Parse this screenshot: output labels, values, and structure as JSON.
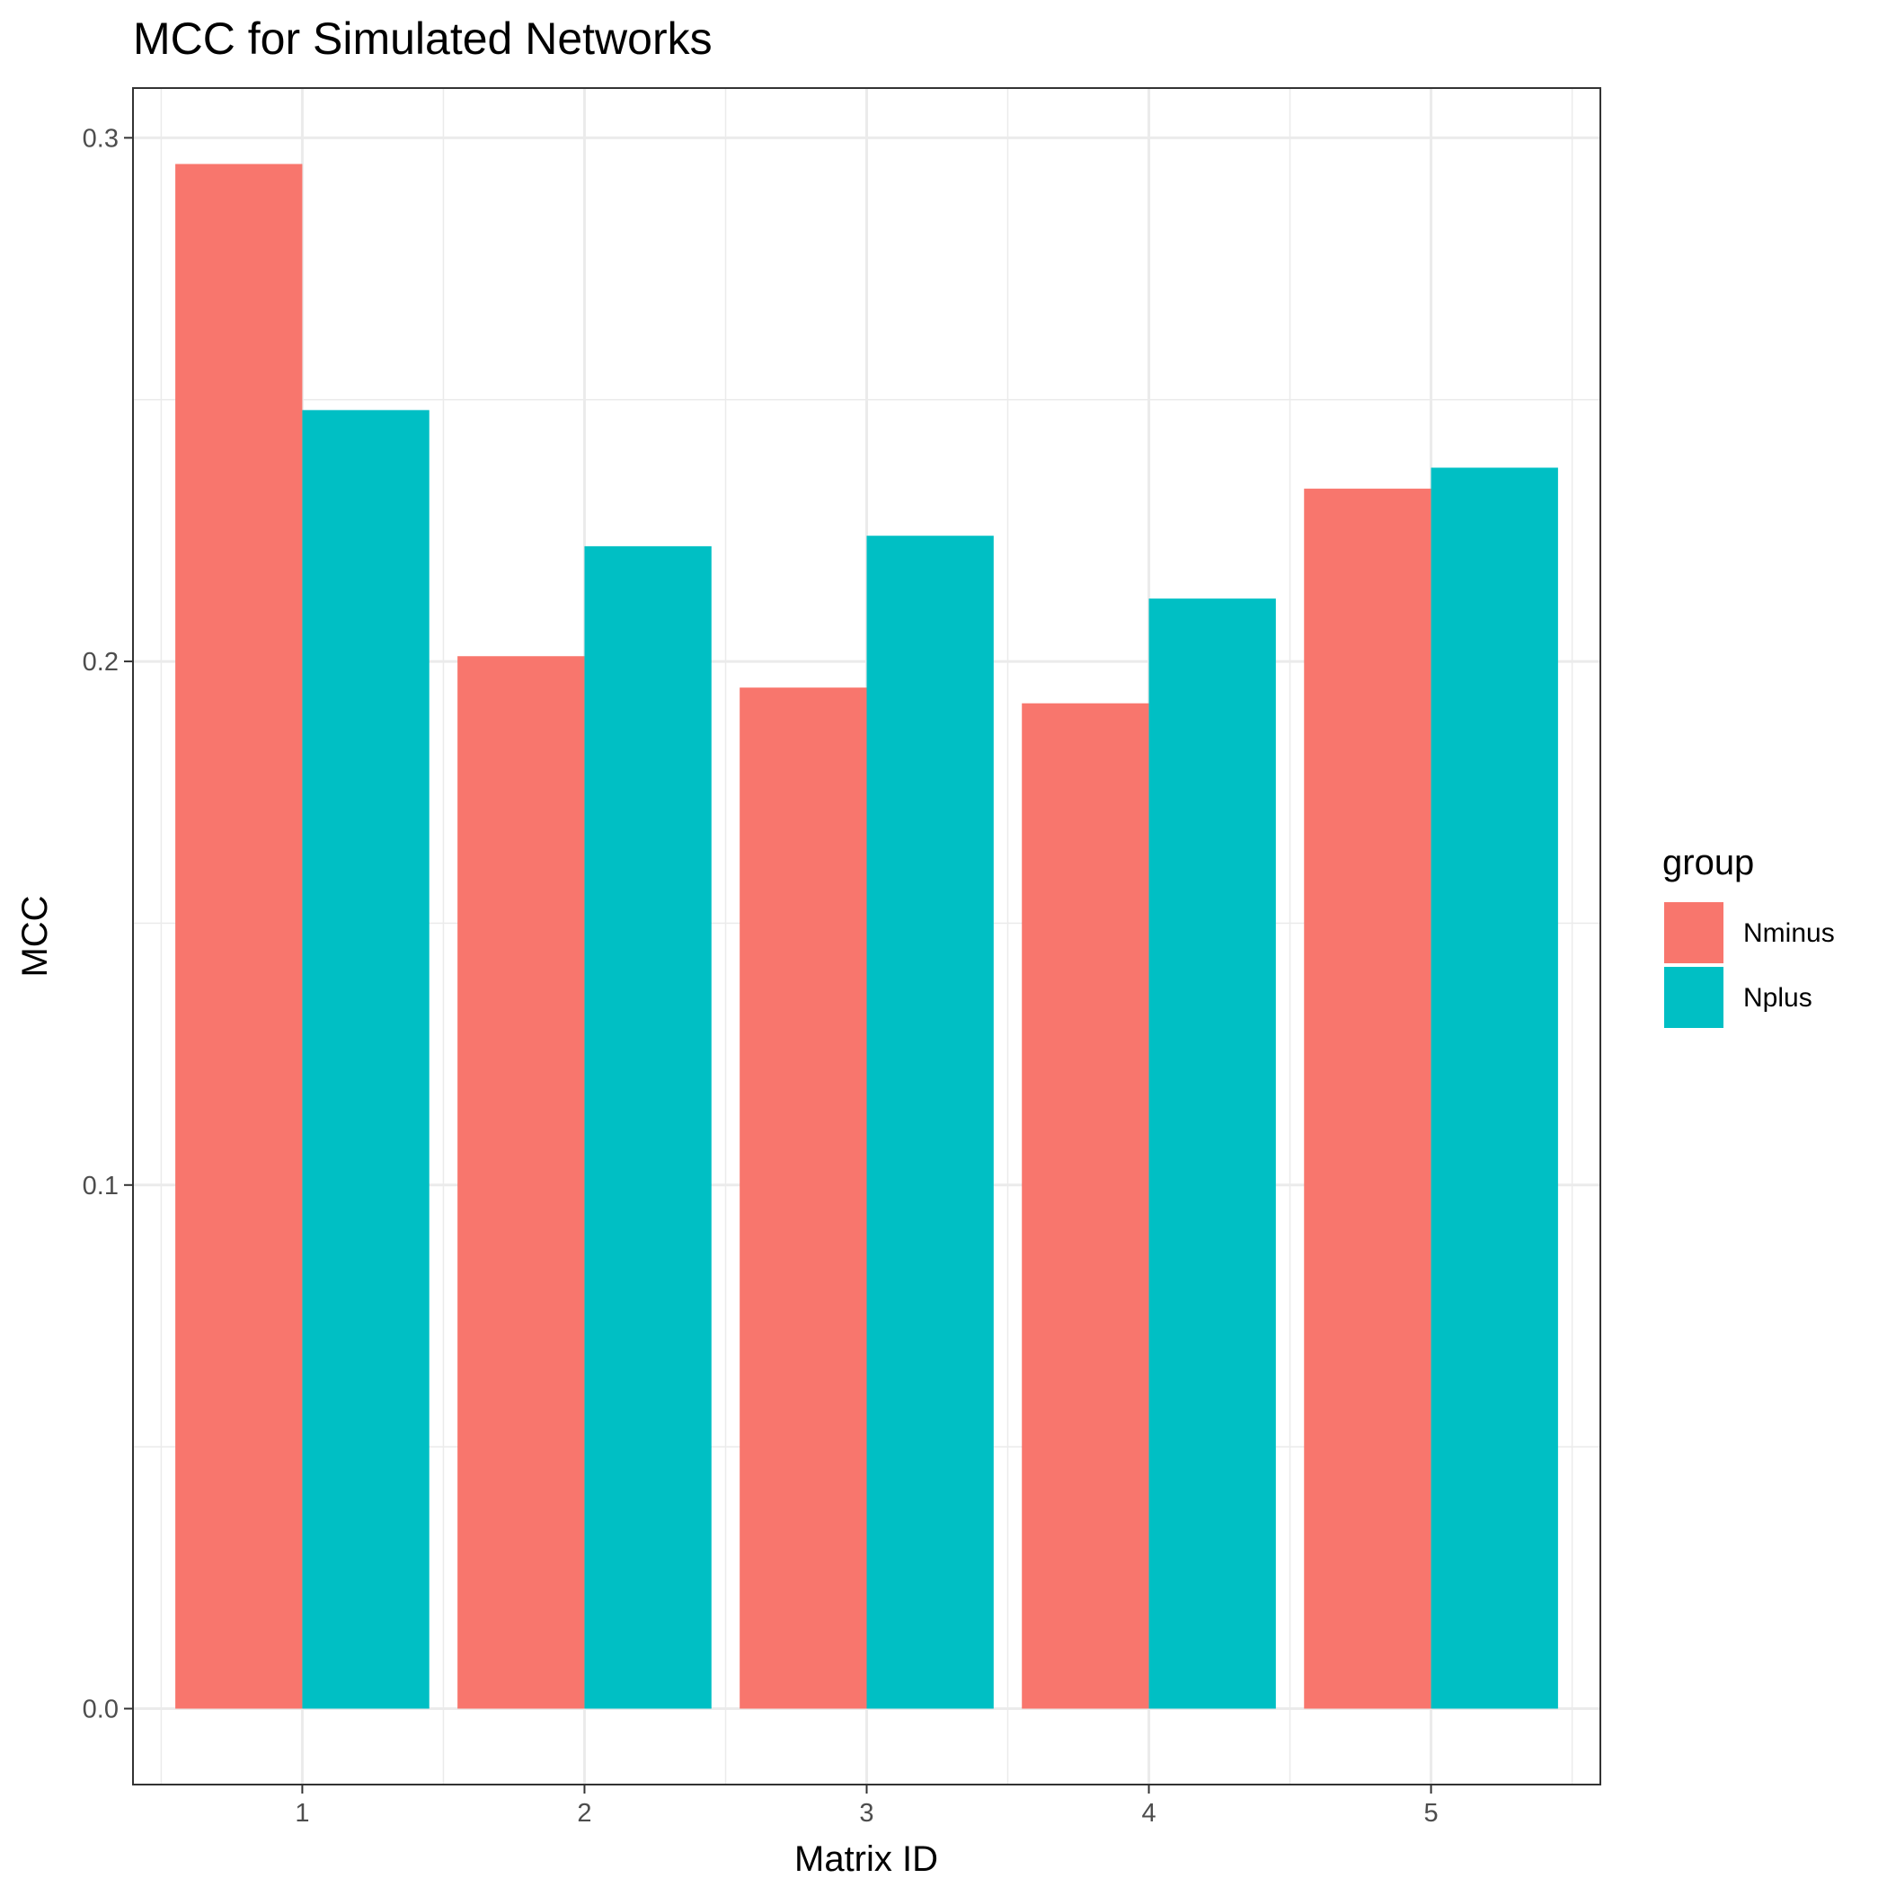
{
  "chart_data": {
    "type": "bar",
    "title": "MCC for Simulated Networks",
    "xlabel": "Matrix ID",
    "ylabel": "MCC",
    "categories": [
      "1",
      "2",
      "3",
      "4",
      "5"
    ],
    "series": [
      {
        "name": "Nminus",
        "color": "#F8766D",
        "values": [
          0.295,
          0.201,
          0.195,
          0.192,
          0.233
        ]
      },
      {
        "name": "Nplus",
        "color": "#00BFC4",
        "values": [
          0.248,
          0.222,
          0.224,
          0.212,
          0.237
        ]
      }
    ],
    "yticks": [
      0.0,
      0.1,
      0.2,
      0.3
    ],
    "ytick_labels": [
      "0.0",
      "0.1",
      "0.2",
      "0.3"
    ],
    "ylim": [
      -0.0145,
      0.3095
    ],
    "grid": true,
    "legend": {
      "title": "group",
      "position": "right"
    }
  }
}
